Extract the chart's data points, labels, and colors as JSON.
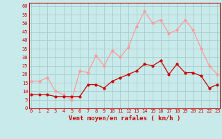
{
  "x": [
    0,
    1,
    2,
    3,
    4,
    5,
    6,
    7,
    8,
    9,
    10,
    11,
    12,
    13,
    14,
    15,
    16,
    17,
    18,
    19,
    20,
    21,
    22,
    23
  ],
  "wind_avg": [
    8,
    8,
    8,
    7,
    7,
    7,
    7,
    14,
    14,
    12,
    16,
    18,
    20,
    22,
    26,
    25,
    28,
    20,
    26,
    21,
    21,
    19,
    12,
    14
  ],
  "wind_gust": [
    16,
    16,
    18,
    10,
    8,
    5,
    22,
    21,
    31,
    25,
    34,
    30,
    36,
    48,
    57,
    50,
    52,
    44,
    46,
    52,
    46,
    35,
    25,
    20
  ],
  "bg_color": "#c8eaea",
  "grid_color": "#a8cccc",
  "avg_color": "#cc0000",
  "gust_color": "#ff9999",
  "xlabel": "Vent moyen/en rafales ( km/h )",
  "xlabel_color": "#cc0000",
  "ylabel_ticks": [
    0,
    5,
    10,
    15,
    20,
    25,
    30,
    35,
    40,
    45,
    50,
    55,
    60
  ],
  "ylim": [
    0,
    62
  ],
  "xlim": [
    -0.3,
    23.3
  ],
  "marker_size": 2,
  "linewidth": 0.9,
  "tick_fontsize": 5,
  "xlabel_fontsize": 6.5
}
